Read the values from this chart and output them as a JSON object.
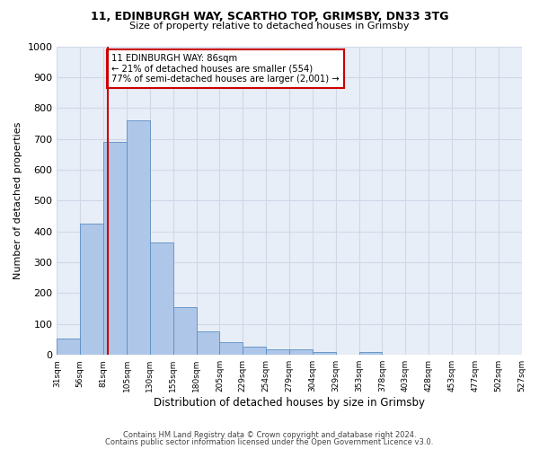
{
  "title1": "11, EDINBURGH WAY, SCARTHO TOP, GRIMSBY, DN33 3TG",
  "title2": "Size of property relative to detached houses in Grimsby",
  "xlabel": "Distribution of detached houses by size in Grimsby",
  "ylabel": "Number of detached properties",
  "x_labels": [
    "31sqm",
    "56sqm",
    "81sqm",
    "105sqm",
    "130sqm",
    "155sqm",
    "180sqm",
    "205sqm",
    "229sqm",
    "254sqm",
    "279sqm",
    "304sqm",
    "329sqm",
    "353sqm",
    "378sqm",
    "403sqm",
    "428sqm",
    "453sqm",
    "477sqm",
    "502sqm",
    "527sqm"
  ],
  "bar_color": "#aec6e8",
  "bar_edge_color": "#5a8fc2",
  "bar_heights": [
    52,
    425,
    690,
    760,
    363,
    155,
    75,
    40,
    28,
    18,
    18,
    10,
    0,
    10,
    0,
    0,
    0,
    0,
    0,
    0
  ],
  "property_bin": 2,
  "vline_color": "#cc0000",
  "annotation_box_color": "#cc0000",
  "annotation_line1": "11 EDINBURGH WAY: 86sqm",
  "annotation_line2": "← 21% of detached houses are smaller (554)",
  "annotation_line3": "77% of semi-detached houses are larger (2,001) →",
  "ylim": [
    0,
    1000
  ],
  "yticks": [
    0,
    100,
    200,
    300,
    400,
    500,
    600,
    700,
    800,
    900,
    1000
  ],
  "grid_color": "#d0d8e8",
  "footer1": "Contains HM Land Registry data © Crown copyright and database right 2024.",
  "footer2": "Contains public sector information licensed under the Open Government Licence v3.0.",
  "background_color": "#e8eef7"
}
